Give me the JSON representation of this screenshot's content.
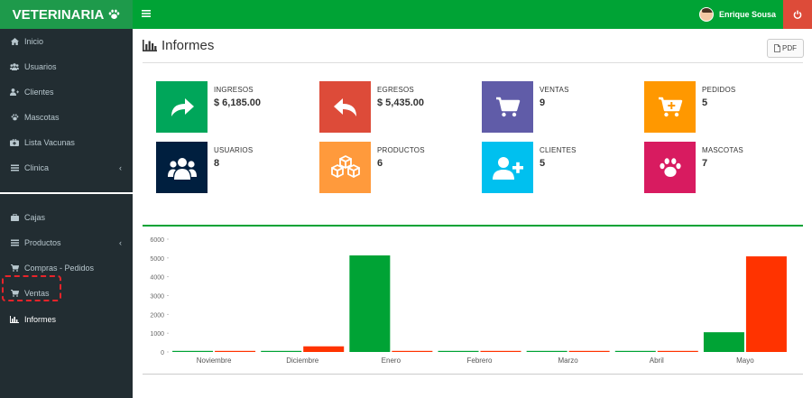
{
  "header": {
    "brand": "VETERINARIA",
    "user_name": "Enrique Sousa",
    "colors": {
      "brand_bg": "#1e9a4b",
      "topbar_bg": "#00a335",
      "power_bg": "#dd4b39"
    }
  },
  "sidebar": {
    "items": [
      {
        "label": "Inicio",
        "icon": "home-icon"
      },
      {
        "label": "Usuarios",
        "icon": "users-icon"
      },
      {
        "label": "Clientes",
        "icon": "user-plus-icon"
      },
      {
        "label": "Mascotas",
        "icon": "paw-icon"
      },
      {
        "label": "Lista Vacunas",
        "icon": "medkit-icon"
      },
      {
        "label": "Clinica",
        "icon": "list-icon"
      },
      {
        "label": "Cajas",
        "icon": "briefcase-icon"
      },
      {
        "label": "Productos",
        "icon": "list-icon"
      },
      {
        "label": "Compras - Pedidos",
        "icon": "cart-icon"
      },
      {
        "label": "Ventas",
        "icon": "cart-icon"
      },
      {
        "label": "Informes",
        "icon": "bar-chart-icon"
      }
    ]
  },
  "page": {
    "title": "Informes",
    "pdf_label": "PDF"
  },
  "stats": [
    {
      "label": "INGRESOS",
      "value": "$ 6,185.00",
      "color": "#00a65a",
      "icon": "share-icon"
    },
    {
      "label": "EGRESOS",
      "value": "$ 5,435.00",
      "color": "#dd4b39",
      "icon": "reply-icon"
    },
    {
      "label": "VENTAS",
      "value": "9",
      "color": "#605ca8",
      "icon": "cart-icon"
    },
    {
      "label": "PEDIDOS",
      "value": "5",
      "color": "#ff9800",
      "icon": "cart-plus-icon"
    },
    {
      "label": "USUARIOS",
      "value": "8",
      "color": "#001f3f",
      "icon": "users-icon"
    },
    {
      "label": "PRODUCTOS",
      "value": "6",
      "color": "#ff9a3c",
      "icon": "cubes-icon"
    },
    {
      "label": "CLIENTES",
      "value": "5",
      "color": "#00c0ef",
      "icon": "user-plus-icon"
    },
    {
      "label": "MASCOTAS",
      "value": "7",
      "color": "#d81b60",
      "icon": "paw-icon"
    }
  ],
  "chart_data": {
    "type": "bar",
    "categories": [
      "Noviembre",
      "Diciembre",
      "Enero",
      "Febrero",
      "Marzo",
      "Abril",
      "Mayo"
    ],
    "series": [
      {
        "color": "#00a335",
        "values": [
          0,
          0,
          5135,
          0,
          0,
          0,
          1050
        ]
      },
      {
        "color": "#ff3300",
        "values": [
          0,
          300,
          50,
          0,
          0,
          0,
          5085
        ]
      }
    ],
    "y_ticks": [
      "0",
      "1000",
      "2000",
      "3000",
      "4000",
      "5000",
      "6000"
    ],
    "ylim": [
      0,
      6000
    ],
    "grid": false
  }
}
